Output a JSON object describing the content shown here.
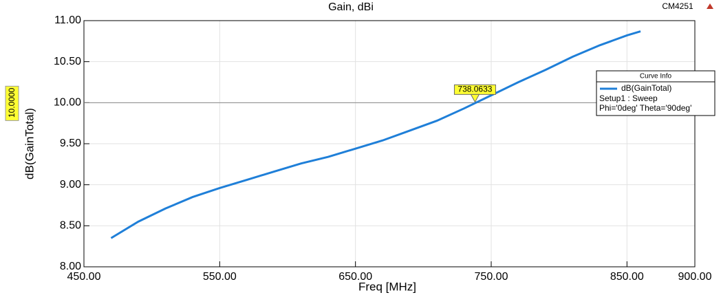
{
  "chart_data": {
    "type": "line",
    "title": "Gain, dBi",
    "corner_label": "CM4251",
    "x_label": "Freq [MHz]",
    "y_label": "dB(GainTotal)",
    "x": [
      470,
      490,
      510,
      530,
      550,
      570,
      590,
      610,
      630,
      650,
      670,
      690,
      710,
      730,
      750,
      770,
      790,
      810,
      830,
      850,
      860
    ],
    "series": [
      {
        "name": "dB(GainTotal)",
        "color": "#1f7fd8",
        "values": [
          8.35,
          8.55,
          8.71,
          8.85,
          8.96,
          9.06,
          9.16,
          9.26,
          9.34,
          9.44,
          9.54,
          9.66,
          9.78,
          9.93,
          10.09,
          10.25,
          10.4,
          10.56,
          10.7,
          10.82,
          10.87
        ]
      }
    ],
    "legend_title": "Curve Info",
    "legend_lines": [
      "Setup1 : Sweep",
      "Phi='0deg' Theta='90deg'"
    ],
    "xlim": [
      450,
      900
    ],
    "ylim": [
      8,
      11
    ],
    "xticks": [
      {
        "value": 450,
        "label": "450.00"
      },
      {
        "value": 550,
        "label": "550.00"
      },
      {
        "value": 650,
        "label": "650.00"
      },
      {
        "value": 750,
        "label": "750.00"
      },
      {
        "value": 850,
        "label": "850.00"
      },
      {
        "value": 900,
        "label": "900.00"
      }
    ],
    "yticks": [
      {
        "value": 8,
        "label": "8.00"
      },
      {
        "value": 8.5,
        "label": "8.50"
      },
      {
        "value": 9,
        "label": "9.00"
      },
      {
        "value": 9.5,
        "label": "9.50"
      },
      {
        "value": 10,
        "label": "10.00"
      },
      {
        "value": 10.5,
        "label": "10.50"
      },
      {
        "value": 11,
        "label": "11.00"
      }
    ],
    "grid": true,
    "marker": {
      "x": {
        "value": 738.0633,
        "label": "738.0633"
      },
      "y": {
        "value": 10,
        "label": "10.0000"
      }
    }
  }
}
